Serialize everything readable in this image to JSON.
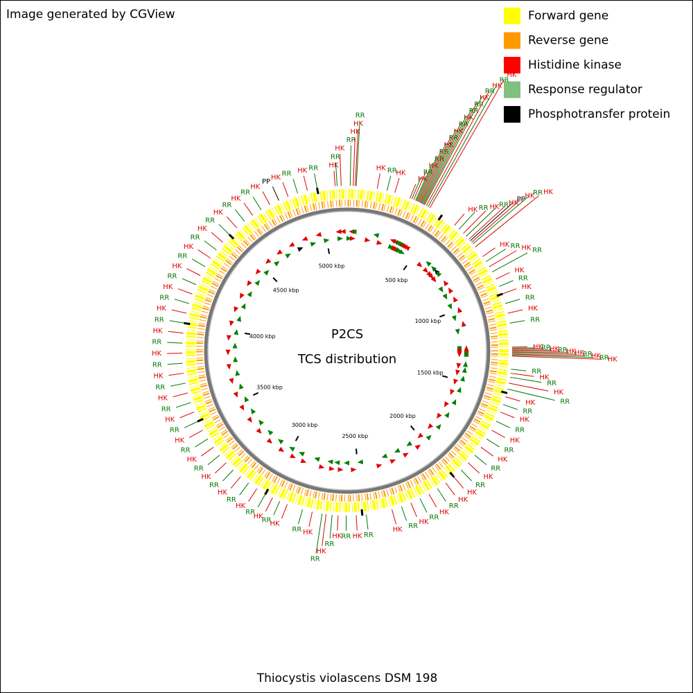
{
  "chart_data": {
    "type": "circular-genome",
    "credit": "Image generated by CGView",
    "title": "P2CS",
    "subtitle": "TCS distribution",
    "organism": "Thiocystis violascens DSM 198",
    "legend": [
      {
        "name": "Forward gene",
        "color": "#ffff00"
      },
      {
        "name": "Reverse gene",
        "color": "#ff9900"
      },
      {
        "name": "Histidine kinase",
        "color": "#ff0000"
      },
      {
        "name": "Response regulator",
        "color": "#80c080"
      },
      {
        "name": "Phosphotransfer protein",
        "color": "#000000"
      }
    ],
    "label_colors": {
      "HK": "#e00000",
      "RR": "#007700",
      "PP": "#000000"
    },
    "xlim": [
      0,
      5150
    ],
    "xticks": [
      {
        "value": 500,
        "label": "500 kbp"
      },
      {
        "value": 1000,
        "label": "1000 kbp"
      },
      {
        "value": 1500,
        "label": "1500 kbp"
      },
      {
        "value": 2000,
        "label": "2000 kbp"
      },
      {
        "value": 2500,
        "label": "2500 kbp"
      },
      {
        "value": 3000,
        "label": "3000 kbp"
      },
      {
        "value": 3500,
        "label": "3500 kbp"
      },
      {
        "value": 4000,
        "label": "4000 kbp"
      },
      {
        "value": 4500,
        "label": "4500 kbp"
      },
      {
        "value": 5000,
        "label": "5000 kbp"
      }
    ],
    "features": [
      {
        "label": "HK",
        "position": 5090
      },
      {
        "label": "RR",
        "position": 5100
      },
      {
        "label": "HK",
        "position": 5120
      },
      {
        "label": "RR",
        "position": 15
      },
      {
        "label": "HK",
        "position": 30
      },
      {
        "label": "HK",
        "position": 40
      },
      {
        "label": "RR",
        "position": 45
      },
      {
        "label": "HK",
        "position": 150
      },
      {
        "label": "RR",
        "position": 200
      },
      {
        "label": "HK",
        "position": 240
      },
      {
        "label": "HK",
        "position": 320
      },
      {
        "label": "RR",
        "position": 330
      },
      {
        "label": "HK",
        "position": 340
      },
      {
        "label": "RR",
        "position": 350
      },
      {
        "label": "RR",
        "position": 355
      },
      {
        "label": "HK",
        "position": 360
      },
      {
        "label": "RR",
        "position": 365
      },
      {
        "label": "HK",
        "position": 370
      },
      {
        "label": "RR",
        "position": 375
      },
      {
        "label": "HK",
        "position": 380
      },
      {
        "label": "RR",
        "position": 385
      },
      {
        "label": "RR",
        "position": 390
      },
      {
        "label": "HK",
        "position": 395
      },
      {
        "label": "RR",
        "position": 400
      },
      {
        "label": "HK",
        "position": 410
      },
      {
        "label": "RR",
        "position": 420
      },
      {
        "label": "HK",
        "position": 430
      },
      {
        "label": "HK",
        "position": 580
      },
      {
        "label": "RR",
        "position": 610
      },
      {
        "label": "HK",
        "position": 640
      },
      {
        "label": "RR",
        "position": 660
      },
      {
        "label": "HK",
        "position": 680
      },
      {
        "label": "PP",
        "position": 690
      },
      {
        "label": "HK",
        "position": 700
      },
      {
        "label": "RR",
        "position": 710
      },
      {
        "label": "HK",
        "position": 730
      },
      {
        "label": "HK",
        "position": 790
      },
      {
        "label": "RR",
        "position": 820
      },
      {
        "label": "HK",
        "position": 850
      },
      {
        "label": "RR",
        "position": 880
      },
      {
        "label": "HK",
        "position": 920
      },
      {
        "label": "RR",
        "position": 960
      },
      {
        "label": "HK",
        "position": 1000
      },
      {
        "label": "RR",
        "position": 1050
      },
      {
        "label": "HK",
        "position": 1100
      },
      {
        "label": "RR",
        "position": 1150
      },
      {
        "label": "HK",
        "position": 1270
      },
      {
        "label": "RR",
        "position": 1275
      },
      {
        "label": "HK",
        "position": 1280
      },
      {
        "label": "RR",
        "position": 1285
      },
      {
        "label": "HK",
        "position": 1290
      },
      {
        "label": "HK",
        "position": 1295
      },
      {
        "label": "RR",
        "position": 1300
      },
      {
        "label": "HK",
        "position": 1305
      },
      {
        "label": "RR",
        "position": 1310
      },
      {
        "label": "HK",
        "position": 1315
      },
      {
        "label": "RR",
        "position": 1380
      },
      {
        "label": "HK",
        "position": 1400
      },
      {
        "label": "RR",
        "position": 1420
      },
      {
        "label": "HK",
        "position": 1450
      },
      {
        "label": "RR",
        "position": 1480
      },
      {
        "label": "HK",
        "position": 1520
      },
      {
        "label": "RR",
        "position": 1560
      },
      {
        "label": "HK",
        "position": 1600
      },
      {
        "label": "RR",
        "position": 1650
      },
      {
        "label": "HK",
        "position": 1700
      },
      {
        "label": "RR",
        "position": 1750
      },
      {
        "label": "HK",
        "position": 1800
      },
      {
        "label": "RR",
        "position": 1850
      },
      {
        "label": "HK",
        "position": 1900
      },
      {
        "label": "RR",
        "position": 1950
      },
      {
        "label": "HK",
        "position": 2000
      },
      {
        "label": "HK",
        "position": 2050
      },
      {
        "label": "RR",
        "position": 2100
      },
      {
        "label": "HK",
        "position": 2150
      },
      {
        "label": "RR",
        "position": 2200
      },
      {
        "label": "HK",
        "position": 2250
      },
      {
        "label": "RR",
        "position": 2300
      },
      {
        "label": "HK",
        "position": 2350
      },
      {
        "label": "RR",
        "position": 2480
      },
      {
        "label": "HK",
        "position": 2530
      },
      {
        "label": "RR",
        "position": 2580
      },
      {
        "label": "HK",
        "position": 2620
      },
      {
        "label": "RR",
        "position": 2650
      },
      {
        "label": "HK",
        "position": 2680
      },
      {
        "label": "RR",
        "position": 2700
      },
      {
        "label": "HK",
        "position": 2750
      },
      {
        "label": "RR",
        "position": 2800
      },
      {
        "label": "HK",
        "position": 2880
      },
      {
        "label": "RR",
        "position": 2920
      },
      {
        "label": "HK",
        "position": 2960
      },
      {
        "label": "RR",
        "position": 3000
      },
      {
        "label": "HK",
        "position": 3050
      },
      {
        "label": "RR",
        "position": 3100
      },
      {
        "label": "HK",
        "position": 3150
      },
      {
        "label": "RR",
        "position": 3200
      },
      {
        "label": "HK",
        "position": 3250
      },
      {
        "label": "RR",
        "position": 3300
      },
      {
        "label": "HK",
        "position": 3350
      },
      {
        "label": "RR",
        "position": 3400
      },
      {
        "label": "HK",
        "position": 3450
      },
      {
        "label": "RR",
        "position": 3500
      },
      {
        "label": "HK",
        "position": 3550
      },
      {
        "label": "RR",
        "position": 3600
      },
      {
        "label": "HK",
        "position": 3650
      },
      {
        "label": "RR",
        "position": 3700
      },
      {
        "label": "HK",
        "position": 3750
      },
      {
        "label": "RR",
        "position": 3800
      },
      {
        "label": "HK",
        "position": 3850
      },
      {
        "label": "RR",
        "position": 3900
      },
      {
        "label": "HK",
        "position": 3950
      },
      {
        "label": "RR",
        "position": 4000
      },
      {
        "label": "HK",
        "position": 4050
      },
      {
        "label": "RR",
        "position": 4100
      },
      {
        "label": "HK",
        "position": 4150
      },
      {
        "label": "RR",
        "position": 4200
      },
      {
        "label": "HK",
        "position": 4250
      },
      {
        "label": "RR",
        "position": 4300
      },
      {
        "label": "HK",
        "position": 4350
      },
      {
        "label": "RR",
        "position": 4400
      },
      {
        "label": "HK",
        "position": 4450
      },
      {
        "label": "RR",
        "position": 4500
      },
      {
        "label": "HK",
        "position": 4550
      },
      {
        "label": "RR",
        "position": 4600
      },
      {
        "label": "HK",
        "position": 4650
      },
      {
        "label": "RR",
        "position": 4700
      },
      {
        "label": "HK",
        "position": 4750
      },
      {
        "label": "PP",
        "position": 4800
      },
      {
        "label": "HK",
        "position": 4850
      },
      {
        "label": "RR",
        "position": 4900
      },
      {
        "label": "HK",
        "position": 4950
      },
      {
        "label": "RR",
        "position": 5000
      }
    ]
  }
}
